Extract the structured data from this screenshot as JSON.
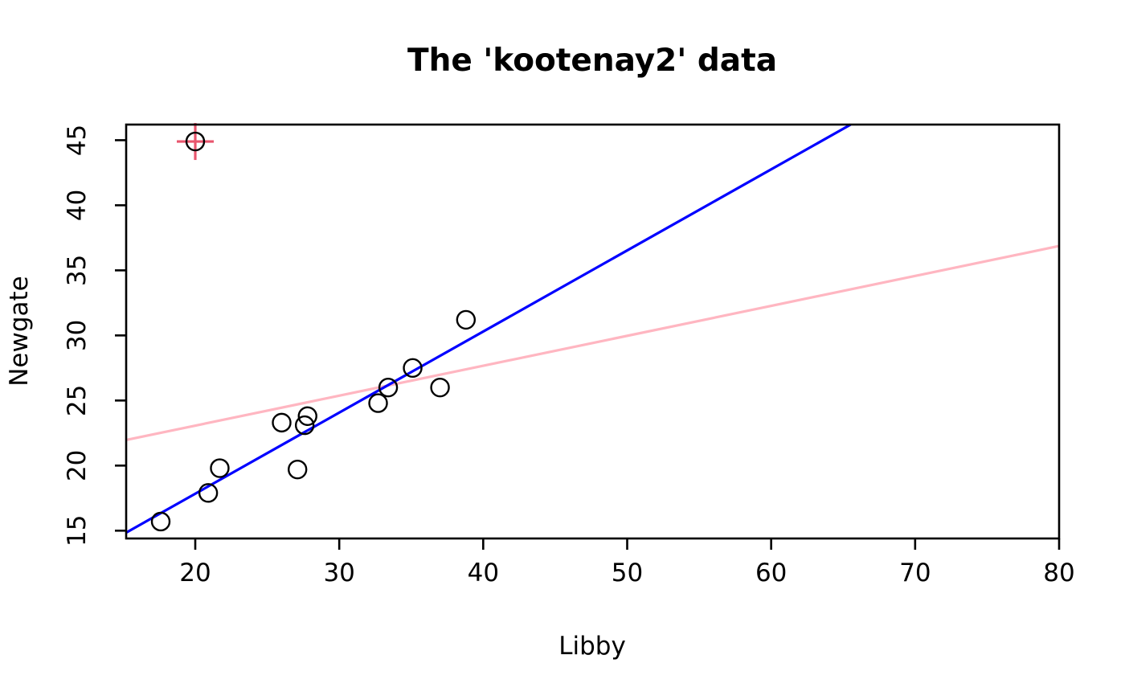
{
  "title": "The 'kootenay2' data",
  "chart_data": {
    "type": "scatter",
    "title": "The 'kootenay2' data",
    "xlabel": "Libby",
    "ylabel": "Newgate",
    "xlim": [
      15.2,
      80.0
    ],
    "ylim": [
      14.4,
      46.2
    ],
    "x_ticks": [
      20,
      30,
      40,
      50,
      60,
      70,
      80
    ],
    "y_ticks": [
      15,
      20,
      25,
      30,
      35,
      40,
      45
    ],
    "grid": false,
    "legend": "none",
    "point_style": "open-circle",
    "point_color": "#000000",
    "points": [
      {
        "x": 17.6,
        "y": 15.7
      },
      {
        "x": 20.9,
        "y": 17.9
      },
      {
        "x": 21.7,
        "y": 19.8
      },
      {
        "x": 26.0,
        "y": 23.3
      },
      {
        "x": 27.1,
        "y": 19.7
      },
      {
        "x": 27.6,
        "y": 23.1
      },
      {
        "x": 27.8,
        "y": 23.8
      },
      {
        "x": 32.7,
        "y": 24.8
      },
      {
        "x": 33.4,
        "y": 26.0
      },
      {
        "x": 35.1,
        "y": 27.5
      },
      {
        "x": 37.0,
        "y": 26.0
      },
      {
        "x": 38.8,
        "y": 31.2
      }
    ],
    "outlier": {
      "x": 20.0,
      "y": 44.9,
      "marker": "circle-with-crosshair",
      "crosshair_color": "#e8566e"
    },
    "lines": [
      {
        "name": "least-squares-fit",
        "slope": 0.23,
        "intercept": 18.47,
        "color": "#ffb6c1"
      },
      {
        "name": "robust-fit",
        "slope": 0.623,
        "intercept": 5.38,
        "color": "#0000ff"
      }
    ],
    "colors": {
      "axis": "#000000",
      "background": "#ffffff",
      "robust_line": "#0000ff",
      "ls_line": "#ffb6c1",
      "outlier_cross": "#e8566e"
    }
  }
}
